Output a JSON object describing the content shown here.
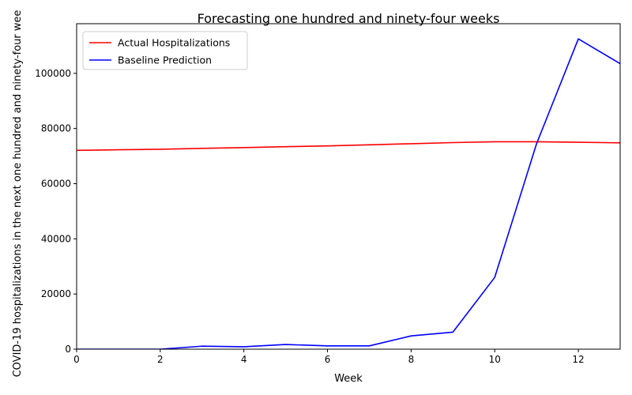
{
  "chart_data": {
    "type": "line",
    "title": "Forecasting one hundred and ninety-four weeks",
    "xlabel": "Week",
    "ylabel": "COVID-19 hospitalizations in the next one hundred and ninety-four wee",
    "xlim": [
      0,
      13
    ],
    "ylim": [
      0,
      118000
    ],
    "xticks": [
      0,
      2,
      4,
      6,
      8,
      10,
      12
    ],
    "yticks": [
      0,
      20000,
      40000,
      60000,
      80000,
      100000
    ],
    "grid": false,
    "legend_position": "top-left",
    "x": [
      0,
      1,
      2,
      3,
      4,
      5,
      6,
      7,
      8,
      9,
      10,
      11,
      12,
      13
    ],
    "series": [
      {
        "name": "Actual Hospitalizations",
        "color": "#ff0000",
        "values": [
          72100,
          72300,
          72500,
          72800,
          73100,
          73400,
          73700,
          74100,
          74500,
          74900,
          75200,
          75200,
          75000,
          74800
        ]
      },
      {
        "name": "Baseline Prediction",
        "color": "#0000ff",
        "values": [
          0,
          0,
          0,
          1100,
          900,
          1700,
          1200,
          1200,
          4800,
          6200,
          26000,
          74500,
          112500,
          103500
        ]
      }
    ]
  }
}
